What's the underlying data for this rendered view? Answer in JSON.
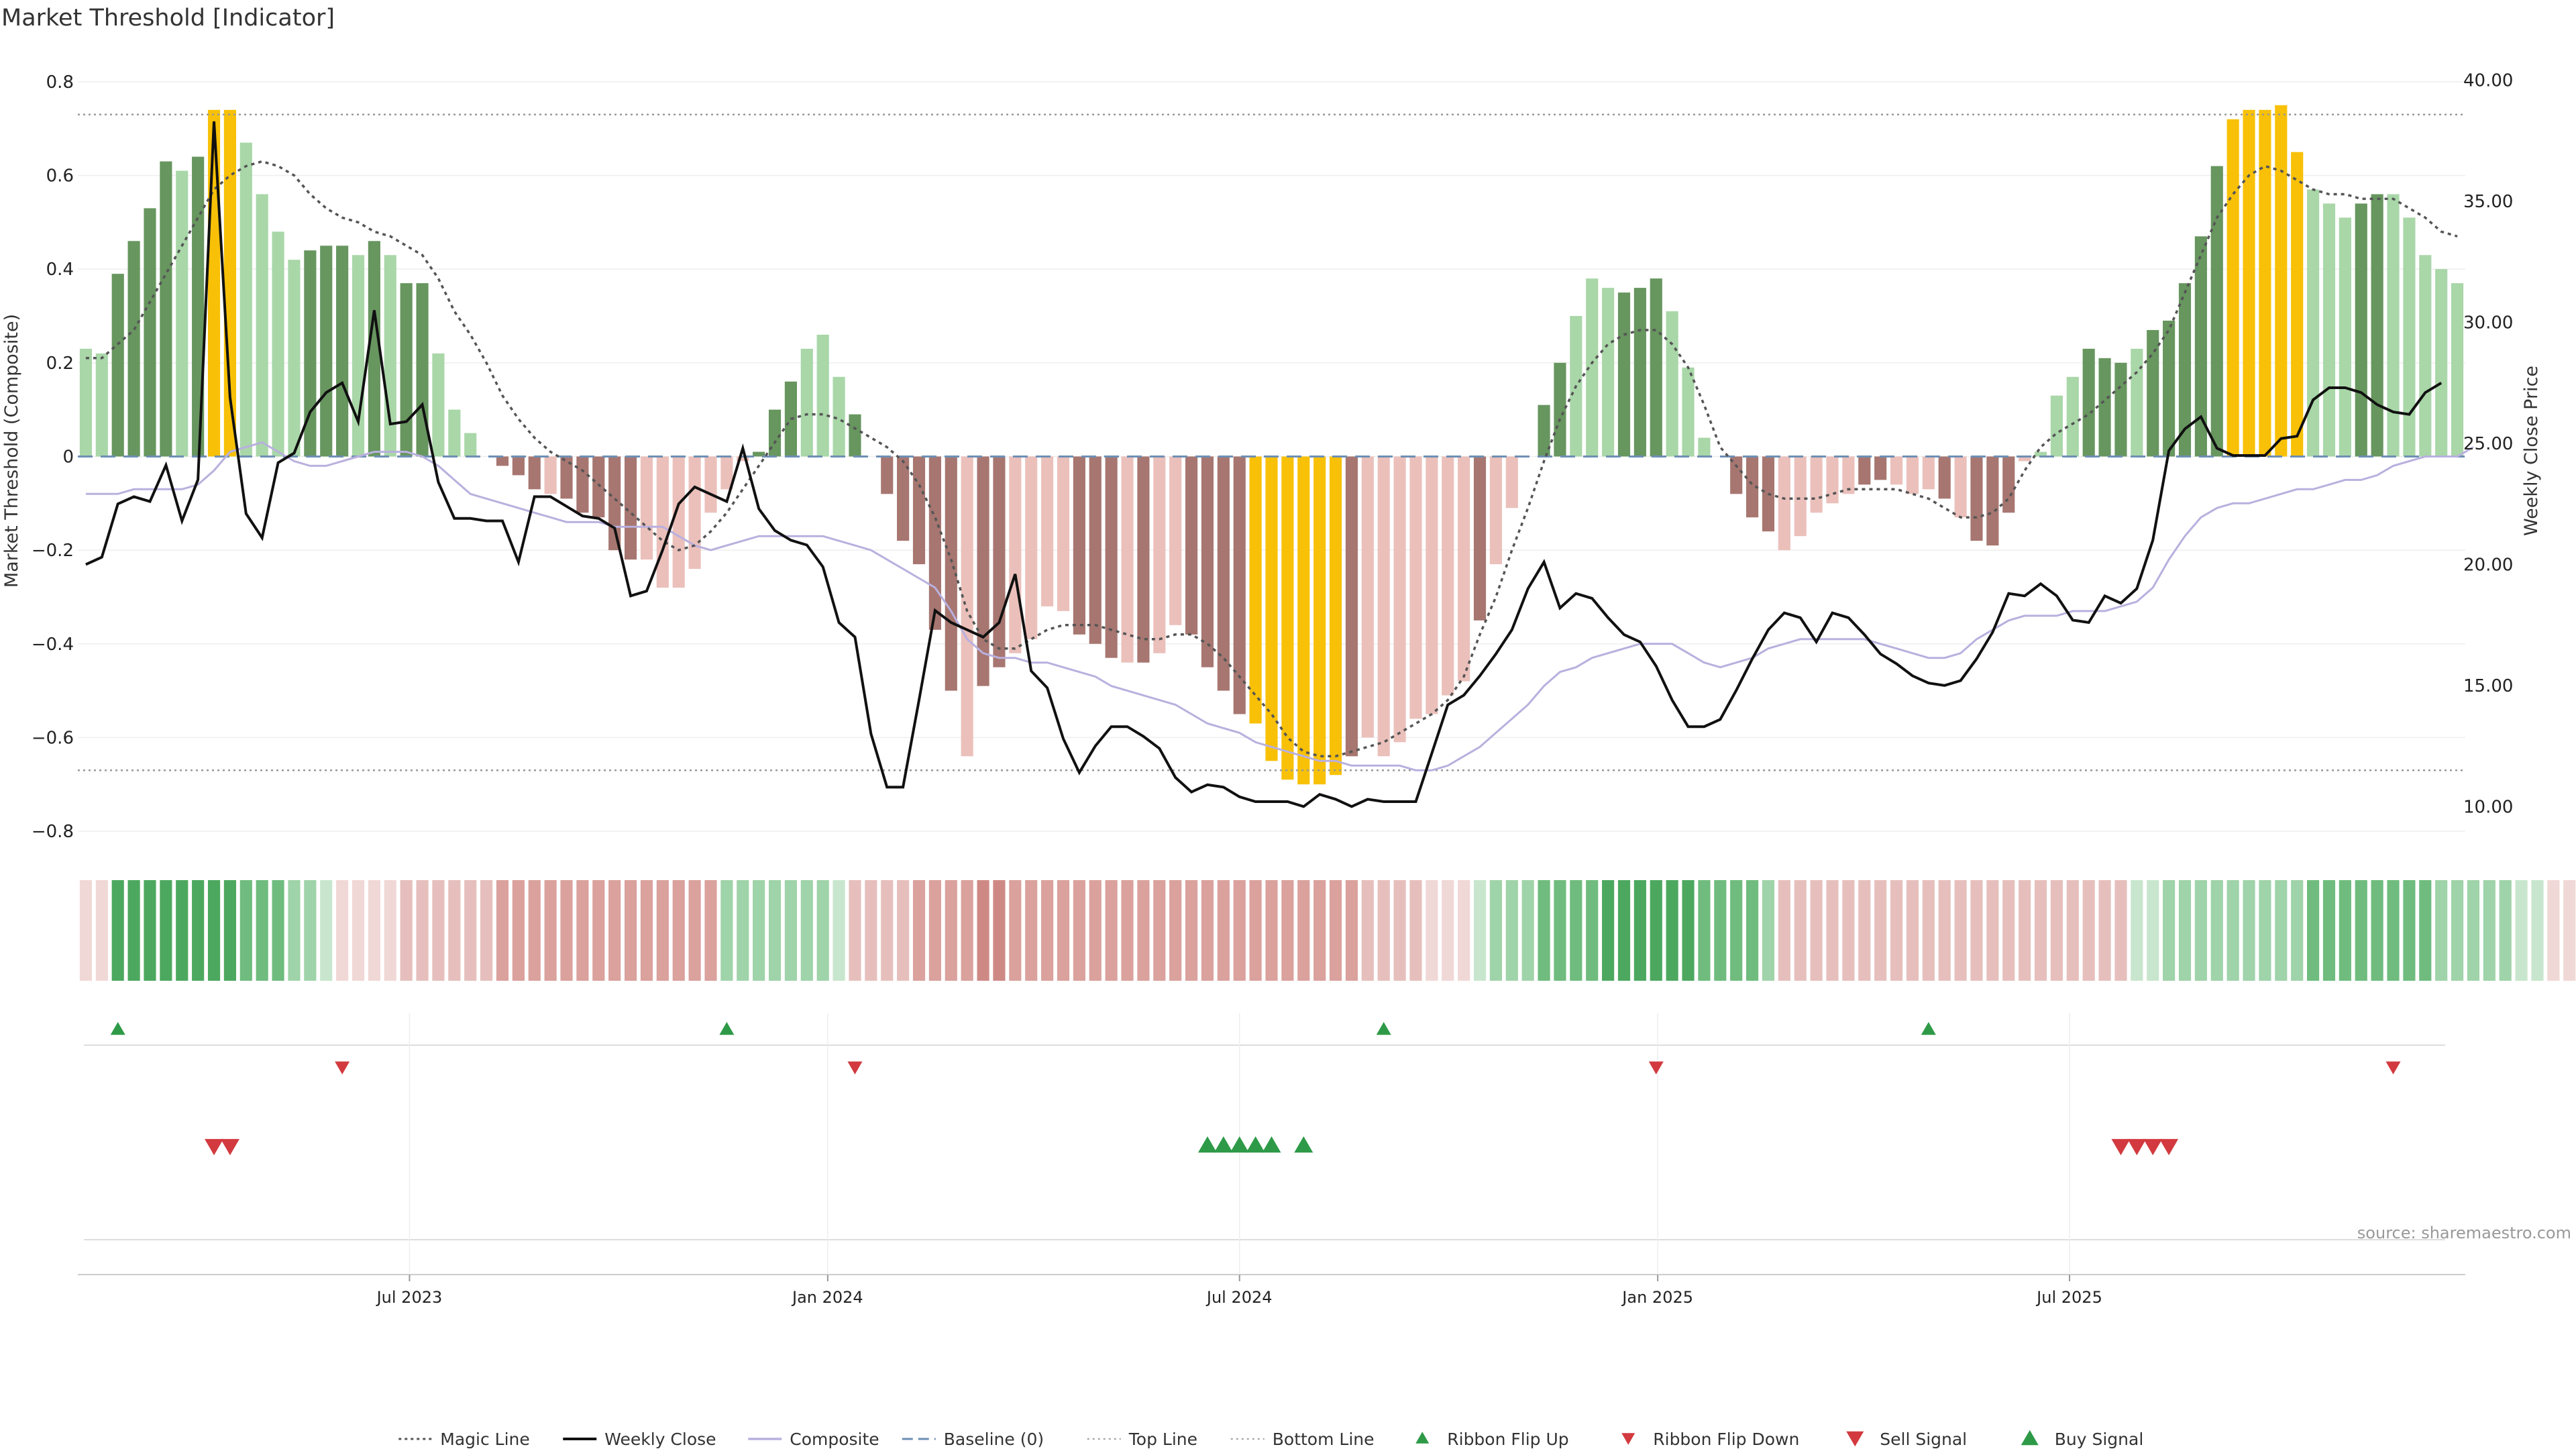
{
  "chart_data": {
    "type": "bar",
    "title": "Market Threshold [Indicator]",
    "ylabel": "Market Threshold (Composite)",
    "ylabel_right": "Weekly Close Price",
    "ylim": [
      -0.83,
      0.86
    ],
    "ylim_right": [
      8.4,
      41.1
    ],
    "left_ticks": [
      "0.8",
      "0.6",
      "0.4",
      "0.2",
      "0",
      "−0.2",
      "−0.4",
      "−0.6",
      "−0.8"
    ],
    "left_tick_values": [
      0.8,
      0.6,
      0.4,
      0.2,
      0,
      -0.2,
      -0.4,
      -0.6,
      -0.8
    ],
    "right_ticks": [
      "40.00",
      "35.00",
      "30.00",
      "25.00",
      "20.00",
      "15.00",
      "10.00"
    ],
    "right_tick_values": [
      40,
      35,
      30,
      25,
      20,
      15,
      10
    ],
    "x_ticks": [
      "Jul 2023",
      "Jan 2024",
      "Jul 2024",
      "Jan 2025",
      "Jul 2025"
    ],
    "x_tick_weeks": [
      20.2,
      46.3,
      72.0,
      98.1,
      123.8
    ],
    "top_line": 0.73,
    "bottom_line": -0.67,
    "baseline": 0,
    "source_text": "source: sharemaestro.com",
    "colors": {
      "dark_green": "#67965f",
      "light_green": "#a9d7a8",
      "dark_red": "#a77670",
      "light_red": "#ebc0bb",
      "gold": "#f8c107",
      "weekly_close": "#111111",
      "composite": "#b9b0de",
      "magic": "#555555",
      "baseline": "#6e8fb4",
      "signal_green": "#2e9a47",
      "signal_red": "#d23a3f"
    },
    "composite_bars": [
      0.23,
      0.22,
      0.39,
      0.46,
      0.53,
      0.63,
      0.61,
      0.64,
      0.74,
      0.74,
      0.67,
      0.56,
      0.48,
      0.42,
      0.44,
      0.45,
      0.45,
      0.43,
      0.46,
      0.43,
      0.37,
      0.37,
      0.22,
      0.1,
      0.05,
      0,
      -0.02,
      -0.04,
      -0.07,
      -0.08,
      -0.09,
      -0.12,
      -0.13,
      -0.2,
      -0.22,
      -0.22,
      -0.28,
      -0.28,
      -0.24,
      -0.12,
      -0.07,
      -0.01,
      0.01,
      0.1,
      0.16,
      0.23,
      0.26,
      0.17,
      0.09,
      0,
      -0.08,
      -0.18,
      -0.23,
      -0.37,
      -0.5,
      -0.64,
      -0.49,
      -0.45,
      -0.42,
      -0.39,
      -0.32,
      -0.33,
      -0.38,
      -0.4,
      -0.43,
      -0.44,
      -0.44,
      -0.42,
      -0.36,
      -0.38,
      -0.45,
      -0.5,
      -0.55,
      -0.57,
      -0.65,
      -0.69,
      -0.7,
      -0.7,
      -0.68,
      -0.64,
      -0.6,
      -0.64,
      -0.61,
      -0.56,
      -0.55,
      -0.51,
      -0.48,
      -0.35,
      -0.23,
      -0.11,
      0,
      0.11,
      0.2,
      0.3,
      0.38,
      0.36,
      0.35,
      0.36,
      0.38,
      0.31,
      0.19,
      0.04,
      0,
      -0.08,
      -0.13,
      -0.16,
      -0.2,
      -0.17,
      -0.12,
      -0.1,
      -0.08,
      -0.06,
      -0.05,
      -0.06,
      -0.08,
      -0.07,
      -0.09,
      -0.13,
      -0.18,
      -0.19,
      -0.12,
      -0.01,
      0.01,
      0.13,
      0.17,
      0.23,
      0.21,
      0.2,
      0.23,
      0.27,
      0.29,
      0.37,
      0.47,
      0.62,
      0.72,
      0.74,
      0.74,
      0.75,
      0.65,
      0.57,
      0.54,
      0.51,
      0.54,
      0.56,
      0.56,
      0.51,
      0.43,
      0.4,
      0.37
    ],
    "bar_color_codes": "LLDDDDLDGGLLLLDDDLDLDDLLLXXDDLDDDDDLLLLLLLDDDLLXDDDDDDDLDDLLLLDDDLDLLDDDDGGGGGGDLLLLLLLXLLDDDLLLDDDLLLXDDDLLLLLDDLLLDLDDDLLLLDDDLDDDDDGGGGGLLLDDLLLL",
    "weekly_close": [
      20,
      20.3,
      22.5,
      22.8,
      22.6,
      24.1,
      21.8,
      23.5,
      38.3,
      26.9,
      22.1,
      21.1,
      24.2,
      24.6,
      26.3,
      27.1,
      27.5,
      25.9,
      30.5,
      25.8,
      25.9,
      26.6,
      23.4,
      21.9,
      21.9,
      21.8,
      21.8,
      20.1,
      22.8,
      22.8,
      22.4,
      22,
      21.9,
      21.5,
      18.7,
      18.9,
      20.6,
      22.5,
      23.2,
      22.9,
      22.6,
      24.8,
      22.3,
      21.4,
      21,
      20.8,
      19.9,
      17.6,
      17,
      13,
      10.8,
      10.8,
      14.4,
      18.1,
      17.6,
      17.3,
      17,
      17.6,
      19.6,
      15.6,
      14.9,
      12.8,
      11.4,
      12.5,
      13.3,
      13.3,
      12.9,
      12.4,
      11.2,
      10.6,
      10.9,
      10.8,
      10.4,
      10.2,
      10.2,
      10.2,
      10,
      10.5,
      10.3,
      10,
      10.3,
      10.2,
      10.2,
      10.2,
      12.2,
      14.2,
      14.6,
      15.4,
      16.3,
      17.3,
      19,
      20.1,
      18.2,
      18.8,
      18.6,
      17.8,
      17.1,
      16.8,
      15.8,
      14.4,
      13.3,
      13.3,
      13.6,
      14.8,
      16.1,
      17.3,
      18,
      17.8,
      16.8,
      18,
      17.8,
      17.1,
      16.3,
      15.9,
      15.4,
      15.1,
      15,
      15.2,
      16.1,
      17.2,
      18.8,
      18.7,
      19.2,
      18.7,
      17.7,
      17.6,
      18.7,
      18.4,
      19,
      21,
      24.7,
      25.6,
      26.1,
      24.8,
      24.5,
      24.5,
      24.5,
      25.2,
      25.3,
      26.8,
      27.3,
      27.3,
      27.1,
      26.6,
      26.3,
      26.2,
      27.1,
      27.5
    ],
    "composite_line": [
      -0.08,
      -0.08,
      -0.08,
      -0.07,
      -0.07,
      -0.07,
      -0.07,
      -0.06,
      -0.03,
      0.01,
      0.02,
      0.03,
      0.01,
      -0.01,
      -0.02,
      -0.02,
      -0.01,
      0,
      0.01,
      0.01,
      0.01,
      0,
      -0.02,
      -0.05,
      -0.08,
      -0.09,
      -0.1,
      -0.11,
      -0.12,
      -0.13,
      -0.14,
      -0.14,
      -0.14,
      -0.15,
      -0.15,
      -0.15,
      -0.15,
      -0.17,
      -0.19,
      -0.2,
      -0.19,
      -0.18,
      -0.17,
      -0.17,
      -0.17,
      -0.17,
      -0.17,
      -0.18,
      -0.19,
      -0.2,
      -0.22,
      -0.24,
      -0.26,
      -0.28,
      -0.33,
      -0.39,
      -0.42,
      -0.43,
      -0.43,
      -0.44,
      -0.44,
      -0.45,
      -0.46,
      -0.47,
      -0.49,
      -0.5,
      -0.51,
      -0.52,
      -0.53,
      -0.55,
      -0.57,
      -0.58,
      -0.59,
      -0.61,
      -0.62,
      -0.63,
      -0.64,
      -0.65,
      -0.65,
      -0.66,
      -0.66,
      -0.66,
      -0.66,
      -0.67,
      -0.67,
      -0.66,
      -0.64,
      -0.62,
      -0.59,
      -0.56,
      -0.53,
      -0.49,
      -0.46,
      -0.45,
      -0.43,
      -0.42,
      -0.41,
      -0.4,
      -0.4,
      -0.4,
      -0.42,
      -0.44,
      -0.45,
      -0.44,
      -0.43,
      -0.41,
      -0.4,
      -0.39,
      -0.39,
      -0.39,
      -0.39,
      -0.39,
      -0.4,
      -0.41,
      -0.42,
      -0.43,
      -0.43,
      -0.42,
      -0.39,
      -0.37,
      -0.35,
      -0.34,
      -0.34,
      -0.34,
      -0.33,
      -0.33,
      -0.33,
      -0.32,
      -0.31,
      -0.28,
      -0.22,
      -0.17,
      -0.13,
      -0.11,
      -0.1,
      -0.1,
      -0.09,
      -0.08,
      -0.07,
      -0.07,
      -0.06,
      -0.05,
      -0.05,
      -0.04,
      -0.02,
      -0.01,
      0,
      0,
      0,
      0.02
    ],
    "magic_line": [
      0.21,
      0.21,
      0.24,
      0.27,
      0.33,
      0.39,
      0.45,
      0.51,
      0.57,
      0.6,
      0.62,
      0.63,
      0.62,
      0.6,
      0.56,
      0.53,
      0.51,
      0.5,
      0.48,
      0.47,
      0.45,
      0.43,
      0.38,
      0.31,
      0.26,
      0.2,
      0.13,
      0.08,
      0.04,
      0.01,
      -0.01,
      -0.03,
      -0.06,
      -0.09,
      -0.12,
      -0.15,
      -0.18,
      -0.2,
      -0.19,
      -0.16,
      -0.12,
      -0.07,
      -0.02,
      0.03,
      0.08,
      0.09,
      0.09,
      0.08,
      0.06,
      0.04,
      0.02,
      -0.01,
      -0.06,
      -0.13,
      -0.22,
      -0.33,
      -0.39,
      -0.41,
      -0.41,
      -0.39,
      -0.37,
      -0.36,
      -0.36,
      -0.36,
      -0.37,
      -0.38,
      -0.39,
      -0.39,
      -0.38,
      -0.38,
      -0.4,
      -0.43,
      -0.47,
      -0.51,
      -0.55,
      -0.6,
      -0.63,
      -0.64,
      -0.64,
      -0.63,
      -0.62,
      -0.61,
      -0.59,
      -0.57,
      -0.55,
      -0.52,
      -0.47,
      -0.38,
      -0.3,
      -0.2,
      -0.11,
      -0.01,
      0.08,
      0.15,
      0.2,
      0.24,
      0.26,
      0.27,
      0.27,
      0.24,
      0.19,
      0.11,
      0.02,
      -0.02,
      -0.06,
      -0.08,
      -0.09,
      -0.09,
      -0.09,
      -0.08,
      -0.07,
      -0.07,
      -0.07,
      -0.07,
      -0.08,
      -0.09,
      -0.11,
      -0.13,
      -0.13,
      -0.12,
      -0.09,
      -0.03,
      0.02,
      0.05,
      0.07,
      0.09,
      0.12,
      0.15,
      0.18,
      0.22,
      0.27,
      0.35,
      0.43,
      0.51,
      0.56,
      0.6,
      0.62,
      0.61,
      0.59,
      0.57,
      0.56,
      0.56,
      0.55,
      0.55,
      0.55,
      0.53,
      0.51,
      0.48,
      0.47
    ],
    "ribbon_values": [
      -1,
      -1,
      4,
      4,
      4,
      4,
      4,
      4,
      4,
      4,
      3,
      3,
      3,
      2,
      2,
      1,
      -1,
      -1,
      -1,
      -1,
      -2,
      -2,
      -2,
      -2,
      -2,
      -2,
      -3,
      -3,
      -3,
      -3,
      -3,
      -3,
      -3,
      -3,
      -3,
      -3,
      -3,
      -3,
      -3,
      -3,
      2,
      2,
      2,
      2,
      2,
      2,
      2,
      1,
      -2,
      -2,
      -2,
      -2,
      -3,
      -3,
      -3,
      -3,
      -4,
      -4,
      -3,
      -3,
      -3,
      -3,
      -3,
      -3,
      -3,
      -3,
      -3,
      -3,
      -3,
      -3,
      -3,
      -3,
      -3,
      -3,
      -3,
      -3,
      -3,
      -3,
      -3,
      -3,
      -2,
      -2,
      -2,
      -2,
      -1,
      -1,
      -1,
      1,
      2,
      2,
      2,
      3,
      3,
      3,
      3,
      4,
      4,
      4,
      4,
      4,
      4,
      3,
      3,
      3,
      3,
      2,
      -2,
      -2,
      -2,
      -2,
      -2,
      -2,
      -2,
      -2,
      -2,
      -2,
      -2,
      -2,
      -2,
      -2,
      -2,
      -2,
      -2,
      -2,
      -2,
      -2,
      -2,
      -2,
      1,
      1,
      2,
      2,
      2,
      2,
      2,
      2,
      2,
      2,
      2,
      3,
      3,
      3,
      3,
      3,
      3,
      3,
      3,
      2,
      2,
      2,
      2,
      2,
      1,
      1,
      -1,
      -1
    ],
    "ribbon_flip_up_weeks": [
      2,
      40,
      81,
      115
    ],
    "ribbon_flip_down_weeks": [
      16,
      48,
      98,
      144
    ],
    "sell_signal_weeks": [
      8,
      9,
      127,
      128,
      129,
      130
    ],
    "buy_signal_weeks": [
      70,
      71,
      72,
      73,
      74,
      76
    ],
    "legend": [
      {
        "label": "Magic Line",
        "kind": "dotted"
      },
      {
        "label": "Weekly Close",
        "kind": "solid"
      },
      {
        "label": "Composite",
        "kind": "composite"
      },
      {
        "label": "Baseline (0)",
        "kind": "dashed"
      },
      {
        "label": "Top Line",
        "kind": "dotted-light"
      },
      {
        "label": "Bottom Line",
        "kind": "dotted-light"
      },
      {
        "label": "Ribbon Flip Up",
        "kind": "tri-up-small"
      },
      {
        "label": "Ribbon Flip Down",
        "kind": "tri-down-small"
      },
      {
        "label": "Sell Signal",
        "kind": "tri-down"
      },
      {
        "label": "Buy Signal",
        "kind": "tri-up"
      }
    ]
  }
}
